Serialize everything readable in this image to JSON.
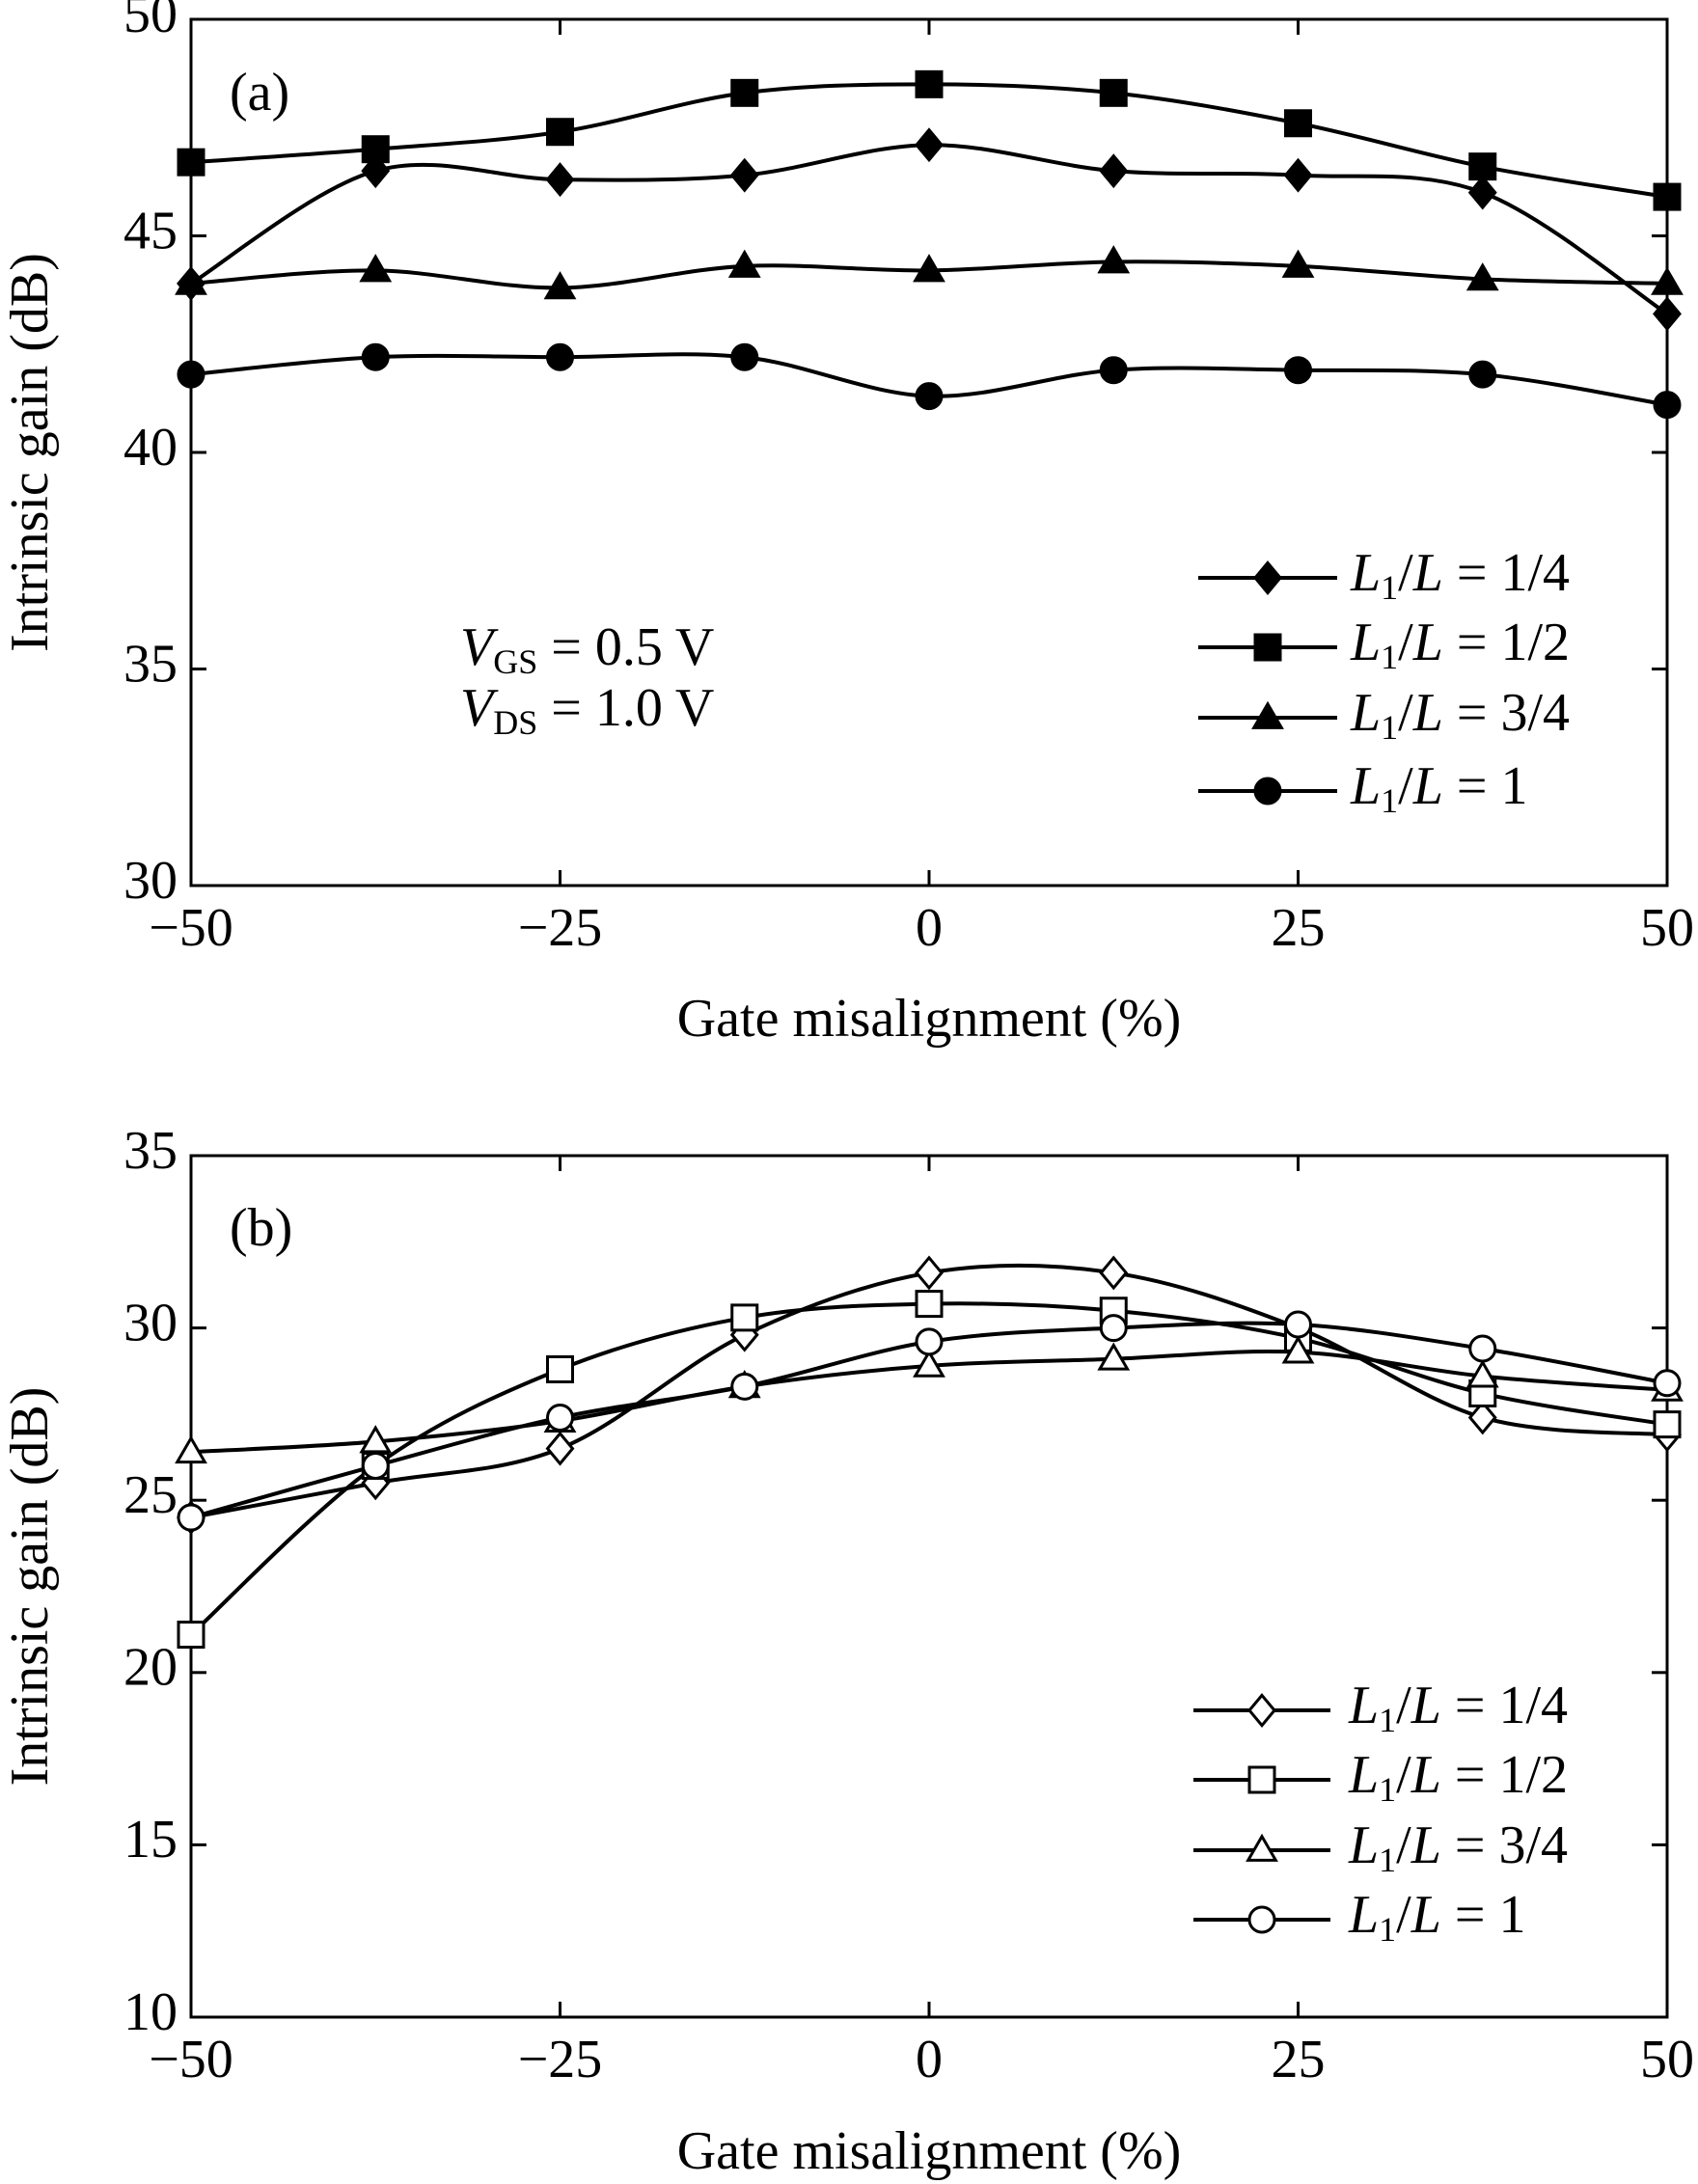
{
  "chart_data": [
    {
      "type": "line",
      "panel_label": "(a)",
      "annotations": [
        "VGS = 0.5 V",
        "VDS = 1.0 V"
      ],
      "x_label": "Gate misalignment (%)",
      "y_label": "Intrinsic gain (dB)",
      "x": [
        -50,
        -37.5,
        -25,
        -12.5,
        0,
        12.5,
        25,
        37.5,
        50
      ],
      "xlim": [
        -50,
        50
      ],
      "ylim": [
        30,
        50
      ],
      "xticks": [
        {
          "value": -50,
          "label": "−50"
        },
        {
          "value": -25,
          "label": "−25"
        },
        0,
        25,
        50
      ],
      "yticks": [
        30,
        35,
        40,
        45,
        50
      ],
      "marker_fill": "filled",
      "series": [
        {
          "name": "L1/L = 1/4",
          "color": "#000000",
          "marker": "diamond",
          "values": [
            43.9,
            46.5,
            46.3,
            46.4,
            47.1,
            46.5,
            46.4,
            46.0,
            43.2
          ]
        },
        {
          "name": "L1/L = 1/2",
          "color": "#000000",
          "marker": "square",
          "values": [
            46.7,
            47.0,
            47.4,
            48.3,
            48.5,
            48.3,
            47.6,
            46.6,
            45.9
          ]
        },
        {
          "name": "L1/L = 3/4",
          "color": "#000000",
          "marker": "triangle",
          "values": [
            43.9,
            44.2,
            43.8,
            44.3,
            44.2,
            44.4,
            44.3,
            44.0,
            43.9
          ]
        },
        {
          "name": "L1/L = 1",
          "color": "#000000",
          "marker": "circle",
          "values": [
            41.8,
            42.2,
            42.2,
            42.2,
            41.3,
            41.9,
            41.9,
            41.8,
            41.1
          ]
        }
      ]
    },
    {
      "type": "line",
      "panel_label": "(b)",
      "x_label": "Gate misalignment (%)",
      "y_label": "Intrinsic gain (dB)",
      "x": [
        -50,
        -37.5,
        -25,
        -12.5,
        0,
        12.5,
        25,
        37.5,
        50
      ],
      "xlim": [
        -50,
        50
      ],
      "ylim": [
        10,
        35
      ],
      "xticks": [
        {
          "value": -50,
          "label": "−50"
        },
        {
          "value": -25,
          "label": "−25"
        },
        0,
        25,
        50
      ],
      "yticks": [
        10,
        15,
        20,
        25,
        30,
        35
      ],
      "marker_fill": "open",
      "series": [
        {
          "name": "L1/L = 1/4",
          "color": "#000000",
          "marker": "diamond",
          "values": [
            24.5,
            25.5,
            26.5,
            29.8,
            31.6,
            31.6,
            30.0,
            27.4,
            26.9
          ]
        },
        {
          "name": "L1/L = 1/2",
          "color": "#000000",
          "marker": "square",
          "values": [
            21.1,
            26.0,
            28.8,
            30.3,
            30.7,
            30.5,
            29.7,
            28.1,
            27.2
          ]
        },
        {
          "name": "L1/L = 3/4",
          "color": "#000000",
          "marker": "triangle",
          "values": [
            26.4,
            26.7,
            27.3,
            28.3,
            28.9,
            29.1,
            29.3,
            28.6,
            28.2
          ]
        },
        {
          "name": "L1/L = 1",
          "color": "#000000",
          "marker": "circle",
          "values": [
            24.5,
            26.0,
            27.4,
            28.3,
            29.6,
            30.0,
            30.1,
            29.4,
            28.4
          ]
        }
      ]
    }
  ]
}
